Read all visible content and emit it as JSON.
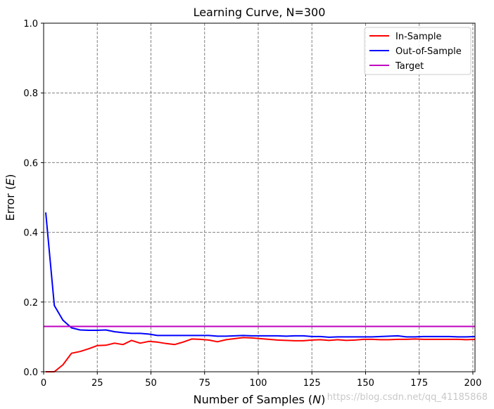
{
  "chart_data": {
    "type": "line",
    "title": "Learning Curve, N=300",
    "xlabel": "Number of Samples (N)",
    "xlabel_prefix": "Number of Samples (",
    "xlabel_var": "N",
    "xlabel_suffix": ")",
    "ylabel": "Error (E)",
    "ylabel_prefix": "Error (",
    "ylabel_var": "E",
    "ylabel_suffix": ")",
    "xlim": [
      0,
      201
    ],
    "ylim": [
      0,
      1.0
    ],
    "xticks": [
      0,
      25,
      50,
      75,
      100,
      125,
      150,
      175,
      200
    ],
    "yticks": [
      0.0,
      0.2,
      0.4,
      0.6,
      0.8,
      1.0
    ],
    "xtick_labels": [
      "0",
      "25",
      "50",
      "75",
      "100",
      "125",
      "150",
      "175",
      "200"
    ],
    "ytick_labels": [
      "0.0",
      "0.2",
      "0.4",
      "0.6",
      "0.8",
      "1.0"
    ],
    "grid": true,
    "legend_position": "top-right",
    "series": [
      {
        "name": "In-Sample",
        "color": "#ff0000",
        "x": [
          1,
          5,
          9,
          13,
          17,
          21,
          25,
          29,
          33,
          37,
          41,
          45,
          49,
          53,
          57,
          61,
          65,
          69,
          73,
          77,
          81,
          85,
          89,
          93,
          97,
          101,
          105,
          109,
          113,
          117,
          121,
          125,
          129,
          133,
          137,
          141,
          145,
          149,
          153,
          157,
          161,
          165,
          169,
          173,
          177,
          181,
          185,
          189,
          193,
          197,
          201
        ],
        "y": [
          0.0,
          0.0,
          0.02,
          0.053,
          0.058,
          0.066,
          0.075,
          0.076,
          0.082,
          0.078,
          0.09,
          0.082,
          0.087,
          0.085,
          0.081,
          0.078,
          0.085,
          0.094,
          0.093,
          0.091,
          0.086,
          0.092,
          0.095,
          0.098,
          0.097,
          0.095,
          0.093,
          0.091,
          0.09,
          0.089,
          0.089,
          0.091,
          0.092,
          0.09,
          0.092,
          0.09,
          0.091,
          0.093,
          0.093,
          0.092,
          0.092,
          0.093,
          0.093,
          0.094,
          0.093,
          0.093,
          0.093,
          0.093,
          0.093,
          0.092,
          0.093
        ]
      },
      {
        "name": "Out-of-Sample",
        "color": "#0000ff",
        "x": [
          1,
          5,
          9,
          13,
          17,
          21,
          25,
          29,
          33,
          37,
          41,
          45,
          49,
          53,
          57,
          61,
          65,
          69,
          73,
          77,
          81,
          85,
          89,
          93,
          97,
          101,
          105,
          109,
          113,
          117,
          121,
          125,
          129,
          133,
          137,
          141,
          145,
          149,
          153,
          157,
          161,
          165,
          169,
          173,
          177,
          181,
          185,
          189,
          193,
          197,
          201
        ],
        "y": [
          0.457,
          0.19,
          0.148,
          0.126,
          0.12,
          0.119,
          0.119,
          0.12,
          0.115,
          0.112,
          0.11,
          0.11,
          0.108,
          0.104,
          0.104,
          0.104,
          0.104,
          0.104,
          0.104,
          0.104,
          0.102,
          0.102,
          0.103,
          0.104,
          0.103,
          0.103,
          0.103,
          0.103,
          0.102,
          0.103,
          0.103,
          0.101,
          0.101,
          0.099,
          0.1,
          0.1,
          0.1,
          0.1,
          0.1,
          0.101,
          0.102,
          0.103,
          0.1,
          0.1,
          0.101,
          0.101,
          0.101,
          0.101,
          0.1,
          0.1,
          0.101
        ]
      },
      {
        "name": "Target",
        "color": "#c000c0",
        "x": [
          0,
          201
        ],
        "y": [
          0.13,
          0.13
        ]
      }
    ],
    "watermark": "https://blog.csdn.net/qq_41185868"
  }
}
